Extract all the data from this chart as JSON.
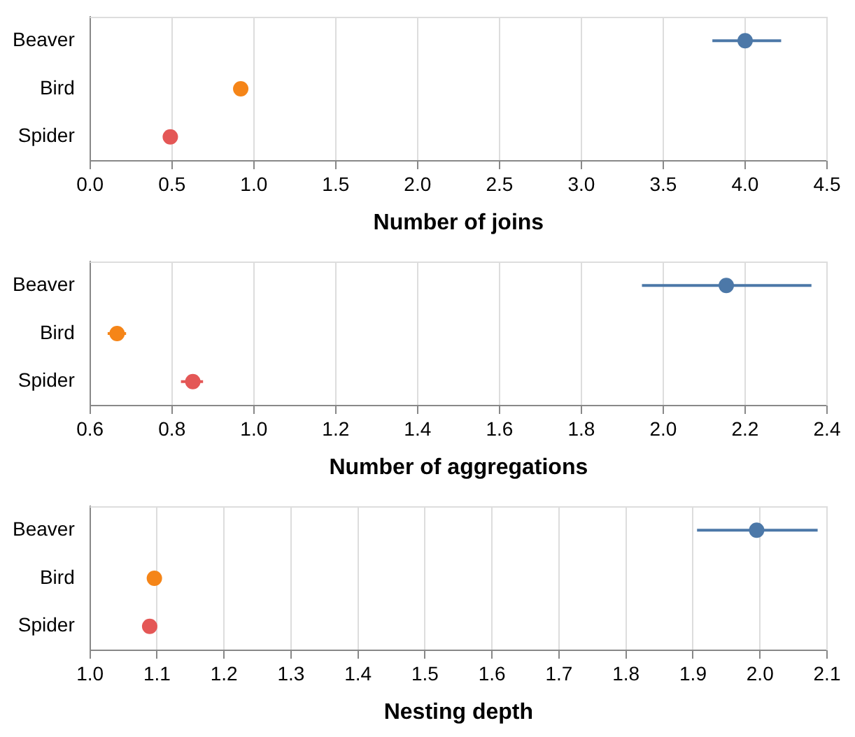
{
  "chart_data": [
    {
      "type": "scatter",
      "orientation": "horizontal",
      "xlabel": "Number of joins",
      "categories": [
        "Beaver",
        "Bird",
        "Spider"
      ],
      "values": [
        4.0,
        0.92,
        0.49
      ],
      "errors": [
        [
          3.8,
          4.22
        ],
        null,
        null
      ],
      "colors": [
        "#4c78a8",
        "#f58518",
        "#e45756"
      ],
      "xlim": [
        0,
        4.5
      ],
      "xticks": [
        {
          "value": 0,
          "label": "0.0"
        },
        0.5,
        {
          "value": 1,
          "label": "1.0"
        },
        1.5,
        {
          "value": 2,
          "label": "2.0"
        },
        2.5,
        {
          "value": 3,
          "label": "3.0"
        },
        3.5,
        {
          "value": 4,
          "label": "4.0"
        },
        4.5
      ],
      "grid": "x",
      "marker": "circle",
      "legend": false
    },
    {
      "type": "scatter",
      "orientation": "horizontal",
      "xlabel": "Number of aggregations",
      "categories": [
        "Beaver",
        "Bird",
        "Spider"
      ],
      "values": [
        2.154,
        0.666,
        0.851
      ],
      "errors": [
        [
          1.948,
          2.362
        ],
        [
          0.643,
          0.688
        ],
        [
          0.822,
          0.876
        ]
      ],
      "colors": [
        "#4c78a8",
        "#f58518",
        "#e45756"
      ],
      "xlim": [
        0.6,
        2.4
      ],
      "xticks": [
        0.6,
        0.8,
        {
          "value": 1,
          "label": "1.0"
        },
        1.2,
        1.4,
        1.6,
        1.8,
        {
          "value": 2,
          "label": "2.0"
        },
        2.2,
        2.4
      ],
      "grid": "x",
      "marker": "circle",
      "legend": false
    },
    {
      "type": "scatter",
      "orientation": "horizontal",
      "xlabel": "Nesting depth",
      "categories": [
        "Beaver",
        "Bird",
        "Spider"
      ],
      "values": [
        1.995,
        1.096,
        1.089
      ],
      "errors": [
        [
          1.906,
          2.086
        ],
        null,
        null
      ],
      "colors": [
        "#4c78a8",
        "#f58518",
        "#e45756"
      ],
      "xlim": [
        1.0,
        2.1
      ],
      "xticks": [
        {
          "value": 1,
          "label": "1.0"
        },
        1.1,
        1.2,
        1.3,
        1.4,
        1.5,
        1.6,
        1.7,
        1.8,
        1.9,
        {
          "value": 2,
          "label": "2.0"
        },
        2.1
      ],
      "grid": "x",
      "marker": "circle",
      "legend": false
    }
  ]
}
